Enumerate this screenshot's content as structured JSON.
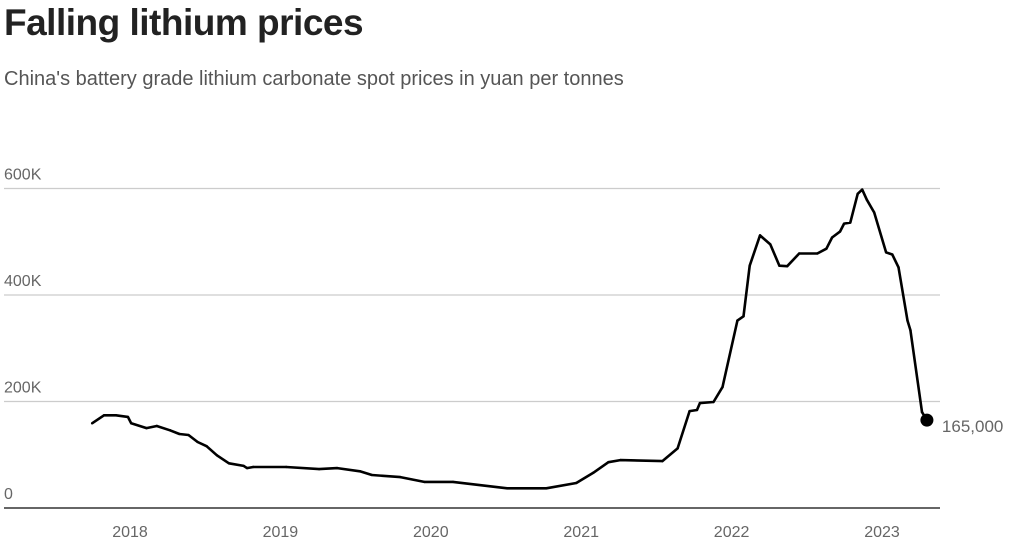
{
  "title": "Falling lithium prices",
  "subtitle": "China's battery grade lithium carbonate spot prices in yuan per tonnes",
  "chart_data": {
    "type": "line",
    "title": "Falling lithium prices",
    "subtitle": "China's battery grade lithium carbonate spot prices in yuan per tonnes",
    "xlabel": "",
    "ylabel": "",
    "ylim": [
      0,
      600000
    ],
    "y_ticks": [
      {
        "value": 0,
        "label": "0"
      },
      {
        "value": 200000,
        "label": "200K"
      },
      {
        "value": 400000,
        "label": "400K"
      },
      {
        "value": 600000,
        "label": "600K"
      }
    ],
    "x_ticks": [
      "2018",
      "2019",
      "2020",
      "2021",
      "2022",
      "2023"
    ],
    "grid": "horizontal",
    "line_color": "#000000",
    "end_label": "165,000",
    "points": [
      [
        "2017-10-01",
        159000
      ],
      [
        "2017-10-30",
        174000
      ],
      [
        "2017-11-28",
        174000
      ],
      [
        "2017-12-27",
        171000
      ],
      [
        "2018-01-04",
        159000
      ],
      [
        "2018-02-10",
        150000
      ],
      [
        "2018-03-07",
        154000
      ],
      [
        "2018-04-08",
        146000
      ],
      [
        "2018-05-01",
        139000
      ],
      [
        "2018-05-23",
        137000
      ],
      [
        "2018-06-14",
        124000
      ],
      [
        "2018-07-06",
        116000
      ],
      [
        "2018-07-31",
        99000
      ],
      [
        "2018-08-29",
        84000
      ],
      [
        "2018-10-04",
        79000
      ],
      [
        "2018-10-12",
        75000
      ],
      [
        "2018-10-27",
        77000
      ],
      [
        "2019-01-15",
        77000
      ],
      [
        "2019-04-05",
        73000
      ],
      [
        "2019-05-19",
        75000
      ],
      [
        "2019-07-13",
        69000
      ],
      [
        "2019-08-11",
        62000
      ],
      [
        "2019-10-19",
        58000
      ],
      [
        "2019-12-16",
        49000
      ],
      [
        "2020-02-24",
        49000
      ],
      [
        "2020-07-05",
        37000
      ],
      [
        "2020-10-08",
        37000
      ],
      [
        "2020-12-20",
        47000
      ],
      [
        "2021-01-30",
        66000
      ],
      [
        "2021-03-08",
        86000
      ],
      [
        "2021-04-06",
        90000
      ],
      [
        "2021-07-17",
        88000
      ],
      [
        "2021-08-23",
        112000
      ],
      [
        "2021-09-21",
        182000
      ],
      [
        "2021-10-09",
        184000
      ],
      [
        "2021-10-16",
        197000
      ],
      [
        "2021-11-18",
        199000
      ],
      [
        "2021-12-10",
        227000
      ],
      [
        "2022-01-15",
        352000
      ],
      [
        "2022-01-30",
        360000
      ],
      [
        "2022-02-14",
        455000
      ],
      [
        "2022-03-11",
        512000
      ],
      [
        "2022-04-05",
        495000
      ],
      [
        "2022-04-27",
        455000
      ],
      [
        "2022-05-16",
        454000
      ],
      [
        "2022-06-14",
        478000
      ],
      [
        "2022-07-28",
        478000
      ],
      [
        "2022-08-19",
        487000
      ],
      [
        "2022-09-02",
        508000
      ],
      [
        "2022-09-21",
        519000
      ],
      [
        "2022-10-01",
        534000
      ],
      [
        "2022-10-16",
        536000
      ],
      [
        "2022-11-03",
        590000
      ],
      [
        "2022-11-14",
        598000
      ],
      [
        "2022-11-25",
        579000
      ],
      [
        "2022-12-13",
        555000
      ],
      [
        "2023-01-11",
        480000
      ],
      [
        "2023-01-26",
        476000
      ],
      [
        "2023-02-10",
        452000
      ],
      [
        "2023-03-04",
        352000
      ],
      [
        "2023-03-11",
        334000
      ],
      [
        "2023-04-08",
        180000
      ],
      [
        "2023-04-20",
        165000
      ]
    ]
  }
}
